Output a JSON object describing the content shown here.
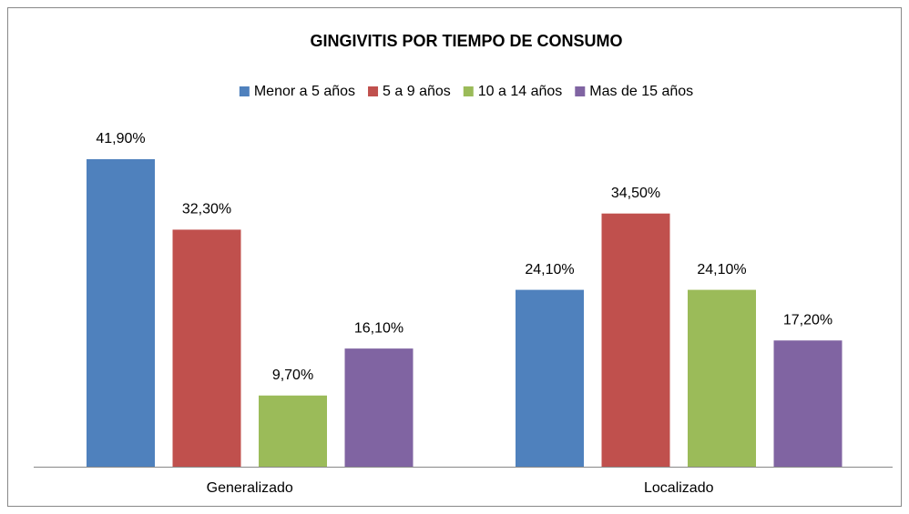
{
  "chart_data": {
    "type": "bar",
    "title": "GINGIVITIS POR TIEMPO DE CONSUMO",
    "categories": [
      "Generalizado",
      "Localizado"
    ],
    "series": [
      {
        "name": "Menor a 5 años",
        "color": "#4f81bd",
        "values": [
          41.9,
          24.1
        ],
        "value_labels": [
          "41,90%",
          "24,10%"
        ]
      },
      {
        "name": "5 a 9 años",
        "color": "#c0504d",
        "values": [
          32.3,
          34.5
        ],
        "value_labels": [
          "32,30%",
          "34,50%"
        ]
      },
      {
        "name": "10 a 14 años",
        "color": "#9bbb59",
        "values": [
          9.7,
          24.1
        ],
        "value_labels": [
          "9,70%",
          "24,10%"
        ]
      },
      {
        "name": "Mas de 15 años",
        "color": "#8064a2",
        "values": [
          16.1,
          17.2
        ],
        "value_labels": [
          "16,10%",
          "17,20%"
        ]
      }
    ],
    "legend": "top"
  }
}
